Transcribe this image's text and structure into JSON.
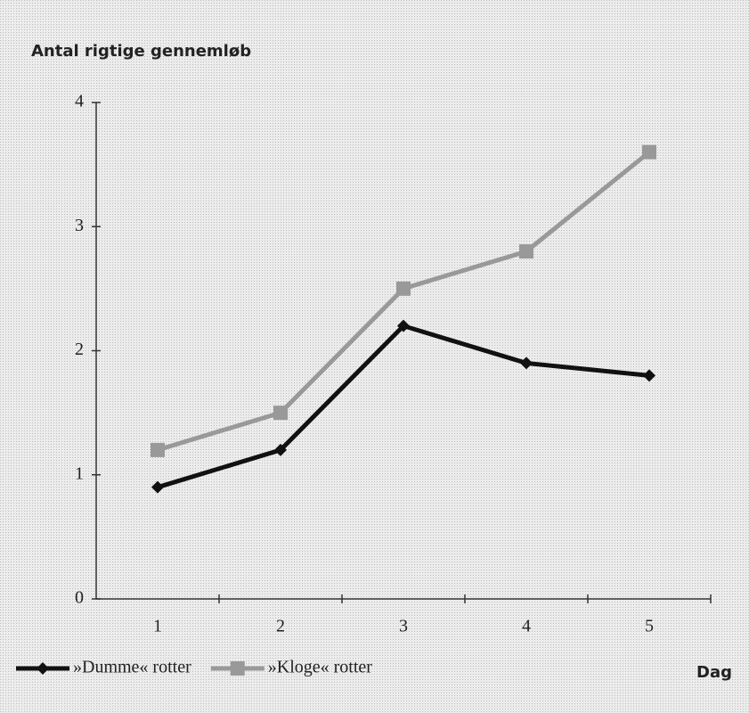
{
  "chart_data": {
    "type": "line",
    "title": "Antal rigtige gennemløb",
    "x_label": "Dag",
    "categories": [
      "1",
      "2",
      "3",
      "4",
      "5"
    ],
    "series": [
      {
        "name": "»Dumme« rotter",
        "color": "#111111",
        "marker": "diamond",
        "values": [
          0.9,
          1.2,
          2.2,
          1.9,
          1.8
        ]
      },
      {
        "name": "»Kloge« rotter",
        "color": "#999999",
        "marker": "square",
        "values": [
          1.2,
          1.5,
          2.5,
          2.8,
          3.6
        ]
      }
    ],
    "ylim": [
      0,
      4
    ],
    "yticks": [
      0,
      1,
      2,
      3,
      4
    ],
    "grid": false,
    "legend": "bottom left"
  }
}
